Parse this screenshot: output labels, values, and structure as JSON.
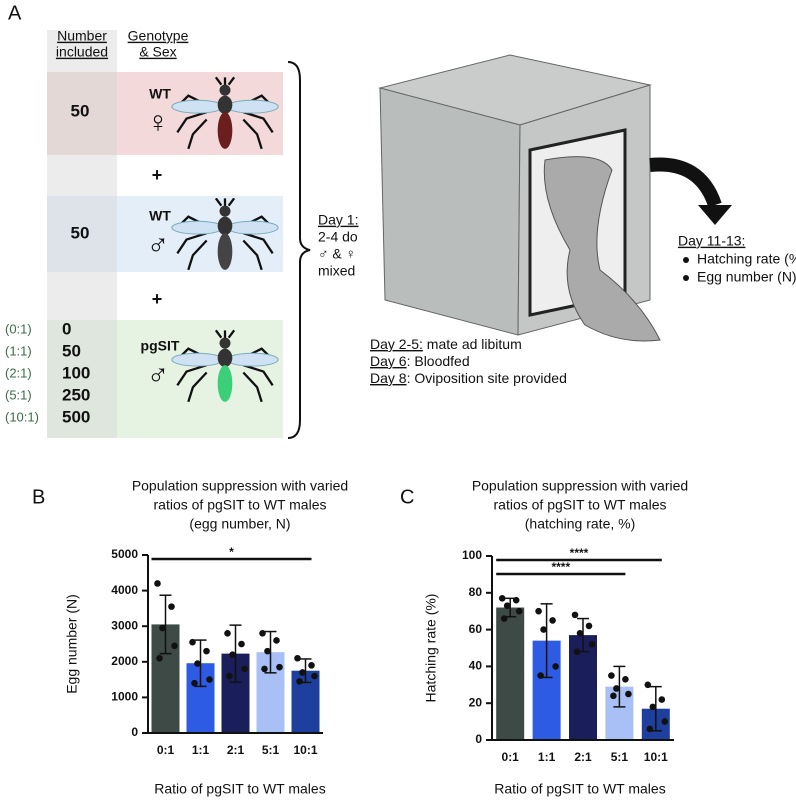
{
  "panel_a": {
    "letter": "A",
    "header_number": [
      "Number",
      "included"
    ],
    "header_genotype": [
      "Genotype",
      "& Sex"
    ],
    "rows": [
      {
        "count": "50",
        "genotype": "WT",
        "sex": "♀"
      },
      {
        "count": "50",
        "genotype": "WT",
        "sex": "♂"
      }
    ],
    "plus": [
      "+",
      "+"
    ],
    "pgsit": {
      "genotype": "pgSIT",
      "sex": "♂",
      "ratios": [
        "(0:1)",
        "(1:1)",
        "(2:1)",
        "(5:1)",
        "(10:1)"
      ],
      "counts": [
        "0",
        "50",
        "100",
        "250",
        "500"
      ]
    },
    "day1": [
      "Day 1:",
      "2-4 do",
      "♂ & ♀",
      "mixed"
    ],
    "schedule": [
      {
        "day": "Day 2-5:",
        "text": " mate ad libitum"
      },
      {
        "day": "Day 6",
        "text": ": Bloodfed"
      },
      {
        "day": "Day 8",
        "text": ": Oviposition site provided"
      }
    ],
    "outcome": {
      "title": "Day 11-13:",
      "items": [
        "Hatching rate (%)",
        "Egg number (N)"
      ]
    }
  },
  "chart_data": [
    {
      "type": "bar",
      "letter": "B",
      "title": [
        "Population suppression with varied",
        "ratios of pgSIT to WT males",
        "(egg number, N)"
      ],
      "categories": [
        "0:1",
        "1:1",
        "2:1",
        "5:1",
        "10:1"
      ],
      "values": [
        3050,
        1960,
        2230,
        2270,
        1750
      ],
      "errors": [
        820,
        650,
        800,
        580,
        330
      ],
      "points": [
        [
          4200,
          3550,
          2950,
          2450,
          2100
        ],
        [
          2550,
          2300,
          1950,
          1500,
          1400
        ],
        [
          2800,
          2500,
          2200,
          1800,
          1600
        ],
        [
          2800,
          2600,
          2300,
          1850,
          1800
        ],
        [
          2100,
          1900,
          1700,
          1600,
          1450
        ]
      ],
      "colors": [
        "#3d4a45",
        "#2d5be3",
        "#1a1f5c",
        "#a8c0f5",
        "#1f3f9e"
      ],
      "ylim": [
        0,
        5000
      ],
      "yticks": [
        0,
        1000,
        2000,
        3000,
        4000,
        5000
      ],
      "y_label": "Egg number (N)",
      "x_label": "Ratio of pgSIT to WT males",
      "significance": [
        {
          "from": "0:1",
          "to": "10:1",
          "label": "*"
        }
      ]
    },
    {
      "type": "bar",
      "letter": "C",
      "title": [
        "Population suppression with varied",
        "ratios of pgSIT to WT males",
        "(hatching rate, %)"
      ],
      "categories": [
        "0:1",
        "1:1",
        "2:1",
        "5:1",
        "10:1"
      ],
      "values": [
        72,
        54,
        57,
        29,
        17
      ],
      "errors": [
        5,
        20,
        9,
        11,
        12
      ],
      "points": [
        [
          77,
          76,
          73,
          70,
          66
        ],
        [
          70,
          65,
          60,
          40,
          35
        ],
        [
          68,
          62,
          58,
          52,
          48
        ],
        [
          35,
          33,
          28,
          25,
          24
        ],
        [
          30,
          22,
          18,
          10,
          6
        ]
      ],
      "colors": [
        "#3d4a45",
        "#2d5be3",
        "#1a1f5c",
        "#a8c0f5",
        "#1f3f9e"
      ],
      "ylim": [
        0,
        100
      ],
      "yticks": [
        0,
        20,
        40,
        60,
        80,
        100
      ],
      "y_label": "Hatching rate (%)",
      "x_label": "Ratio of pgSIT to WT males",
      "significance": [
        {
          "from": "0:1",
          "to": "10:1",
          "label": "****"
        },
        {
          "from": "0:1",
          "to": "5:1",
          "label": "****"
        }
      ]
    }
  ]
}
